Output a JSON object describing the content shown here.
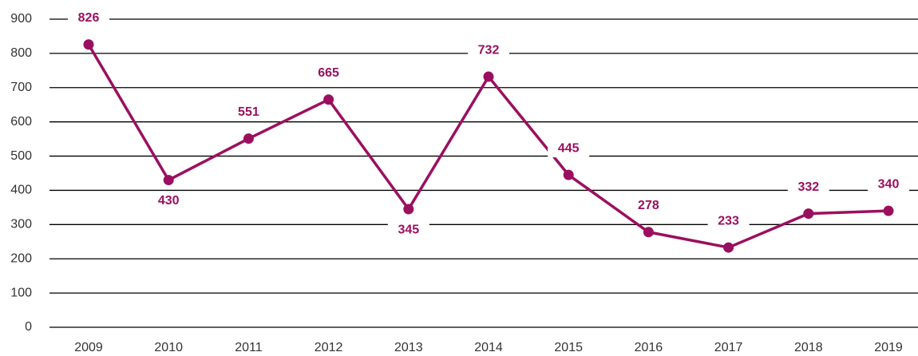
{
  "chart_data": {
    "type": "line",
    "categories": [
      "2009",
      "2010",
      "2011",
      "2012",
      "2013",
      "2014",
      "2015",
      "2016",
      "2017",
      "2018",
      "2019"
    ],
    "series": [
      {
        "color": "#9b0f5f",
        "values": [
          826,
          430,
          551,
          665,
          345,
          732,
          445,
          278,
          233,
          332,
          340
        ]
      }
    ],
    "ylim": [
      0,
      900
    ],
    "yticks": [
      0,
      100,
      200,
      300,
      400,
      500,
      600,
      700,
      800,
      900
    ],
    "grid": true
  }
}
